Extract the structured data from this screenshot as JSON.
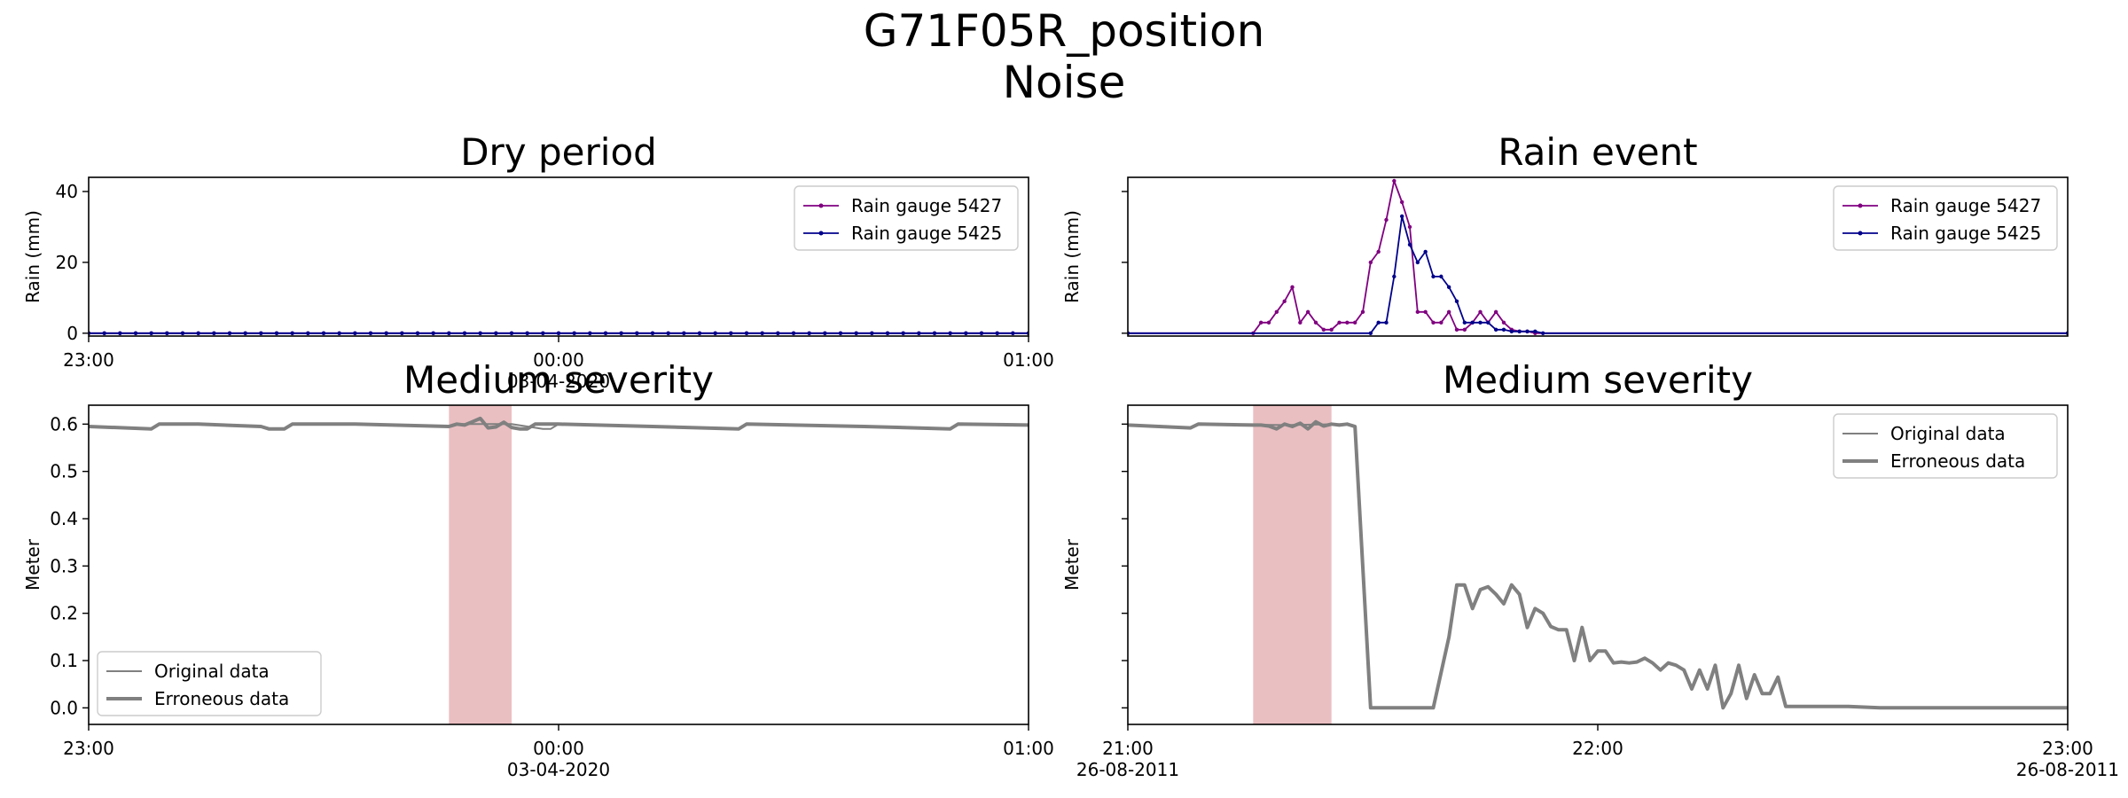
{
  "figure": {
    "title_line1": "G71F05R_position",
    "title_line2": "Noise"
  },
  "colors": {
    "gauge_5427": "#800080",
    "gauge_5425": "#00008b",
    "level_line": "#808080",
    "highlight": "#d98a8f"
  },
  "chart_data": [
    {
      "type": "line",
      "title": "Dry period",
      "ylabel": "Rain (mm)",
      "ylim": [
        -0.8,
        44
      ],
      "yticks": [
        0,
        20,
        40
      ],
      "x_range_min": [
        0,
        120
      ],
      "x_ticks": [
        {
          "x": 0,
          "line1": "23:00",
          "line2": ""
        },
        {
          "x": 60,
          "line1": "00:00",
          "line2": "03-04-2020"
        },
        {
          "x": 120,
          "line1": "01:00",
          "line2": ""
        }
      ],
      "legend_position": "upper right",
      "series": [
        {
          "name": "Rain gauge 5427",
          "color_key": "gauge_5427",
          "step_min": 2,
          "values": "zeros"
        },
        {
          "name": "Rain gauge 5425",
          "color_key": "gauge_5425",
          "step_min": 2,
          "values": "zeros"
        }
      ]
    },
    {
      "type": "line",
      "title": "Rain event",
      "ylabel": "Rain (mm)",
      "ylim": [
        -0.8,
        44
      ],
      "yticks": [],
      "x_range_min": [
        0,
        120
      ],
      "x_ticks": [],
      "legend_position": "upper right",
      "series": [
        {
          "name": "Rain gauge 5427",
          "color_key": "gauge_5427",
          "points": [
            [
              0,
              0
            ],
            [
              16,
              0
            ],
            [
              17,
              3
            ],
            [
              18,
              3
            ],
            [
              19,
              6
            ],
            [
              20,
              9
            ],
            [
              21,
              13
            ],
            [
              22,
              3
            ],
            [
              23,
              6
            ],
            [
              24,
              3
            ],
            [
              25,
              1
            ],
            [
              26,
              1
            ],
            [
              27,
              3
            ],
            [
              28,
              3
            ],
            [
              29,
              3
            ],
            [
              30,
              6
            ],
            [
              31,
              20
            ],
            [
              32,
              23
            ],
            [
              33,
              32
            ],
            [
              34,
              43
            ],
            [
              35,
              37
            ],
            [
              36,
              30
            ],
            [
              37,
              6
            ],
            [
              38,
              6
            ],
            [
              39,
              3
            ],
            [
              40,
              3
            ],
            [
              41,
              6
            ],
            [
              42,
              1
            ],
            [
              43,
              1
            ],
            [
              44,
              3
            ],
            [
              45,
              6
            ],
            [
              46,
              3
            ],
            [
              47,
              6
            ],
            [
              48,
              3
            ],
            [
              49,
              1
            ],
            [
              50,
              0.5
            ],
            [
              51,
              0.5
            ],
            [
              52,
              0
            ],
            [
              120,
              0
            ]
          ]
        },
        {
          "name": "Rain gauge 5425",
          "color_key": "gauge_5425",
          "points": [
            [
              0,
              0
            ],
            [
              31,
              0
            ],
            [
              32,
              3
            ],
            [
              33,
              3
            ],
            [
              34,
              16
            ],
            [
              35,
              33
            ],
            [
              36,
              25
            ],
            [
              37,
              20
            ],
            [
              38,
              23
            ],
            [
              39,
              16
            ],
            [
              40,
              16
            ],
            [
              41,
              13
            ],
            [
              42,
              9
            ],
            [
              43,
              3
            ],
            [
              44,
              3
            ],
            [
              45,
              3
            ],
            [
              46,
              3
            ],
            [
              47,
              1
            ],
            [
              48,
              1
            ],
            [
              49,
              0.5
            ],
            [
              50,
              0.5
            ],
            [
              51,
              0.5
            ],
            [
              52,
              0.5
            ],
            [
              53,
              0
            ],
            [
              120,
              0
            ]
          ]
        }
      ]
    },
    {
      "type": "line",
      "title": "Medium severity",
      "ylabel": "Meter",
      "ylim": [
        -0.035,
        0.64
      ],
      "yticks": [
        0.0,
        0.1,
        0.2,
        0.3,
        0.4,
        0.5,
        0.6
      ],
      "x_range_min": [
        0,
        120
      ],
      "x_ticks": [
        {
          "x": 0,
          "line1": "23:00",
          "line2": ""
        },
        {
          "x": 60,
          "line1": "00:00",
          "line2": "03-04-2020"
        },
        {
          "x": 120,
          "line1": "01:00",
          "line2": ""
        }
      ],
      "highlight_span": [
        46,
        54
      ],
      "legend_position": "lower left",
      "series": [
        {
          "name": "Original data",
          "color_key": "level_line",
          "width": 2,
          "points": [
            [
              0,
              0.595
            ],
            [
              8,
              0.59
            ],
            [
              9,
              0.6
            ],
            [
              14,
              0.6
            ],
            [
              22,
              0.595
            ],
            [
              23,
              0.59
            ],
            [
              25,
              0.59
            ],
            [
              26,
              0.6
            ],
            [
              34,
              0.6
            ],
            [
              46,
              0.595
            ],
            [
              47,
              0.6
            ],
            [
              54,
              0.6
            ],
            [
              58,
              0.59
            ],
            [
              59,
              0.59
            ],
            [
              60,
              0.6
            ],
            [
              72,
              0.595
            ],
            [
              83,
              0.59
            ],
            [
              84,
              0.6
            ],
            [
              99,
              0.595
            ],
            [
              110,
              0.59
            ],
            [
              111,
              0.6
            ],
            [
              120,
              0.598
            ]
          ]
        },
        {
          "name": "Erroneous data",
          "color_key": "level_line",
          "width": 4,
          "points": [
            [
              0,
              0.595
            ],
            [
              8,
              0.59
            ],
            [
              9,
              0.6
            ],
            [
              14,
              0.6
            ],
            [
              22,
              0.595
            ],
            [
              23,
              0.59
            ],
            [
              25,
              0.59
            ],
            [
              26,
              0.6
            ],
            [
              34,
              0.6
            ],
            [
              46,
              0.595
            ],
            [
              47,
              0.6
            ],
            [
              48,
              0.598
            ],
            [
              49,
              0.605
            ],
            [
              50,
              0.612
            ],
            [
              51,
              0.592
            ],
            [
              52,
              0.594
            ],
            [
              53,
              0.604
            ],
            [
              54,
              0.593
            ],
            [
              55,
              0.59
            ],
            [
              56,
              0.59
            ],
            [
              57,
              0.6
            ],
            [
              60,
              0.6
            ],
            [
              72,
              0.595
            ],
            [
              83,
              0.59
            ],
            [
              84,
              0.6
            ],
            [
              99,
              0.595
            ],
            [
              110,
              0.59
            ],
            [
              111,
              0.6
            ],
            [
              120,
              0.598
            ]
          ]
        }
      ]
    },
    {
      "type": "line",
      "title": "Medium severity",
      "ylabel": "Meter",
      "ylim": [
        -0.035,
        0.64
      ],
      "yticks": [],
      "x_range_min": [
        0,
        120
      ],
      "x_ticks": [
        {
          "x": 0,
          "line1": "21:00",
          "line2": "26-08-2011"
        },
        {
          "x": 60,
          "line1": "22:00",
          "line2": ""
        },
        {
          "x": 120,
          "line1": "23:00",
          "line2": "26-08-2011"
        }
      ],
      "highlight_span": [
        16,
        26
      ],
      "legend_position": "upper right",
      "series": [
        {
          "name": "Original data",
          "color_key": "level_line",
          "width": 2,
          "points": [
            [
              0,
              0.598
            ],
            [
              8,
              0.592
            ],
            [
              9,
              0.6
            ],
            [
              20,
              0.598
            ],
            [
              28,
              0.6
            ],
            [
              29,
              0.595
            ],
            [
              31,
              0.0
            ],
            [
              39,
              0.0
            ],
            [
              41,
              0.15
            ],
            [
              42,
              0.26
            ],
            [
              43,
              0.26
            ],
            [
              44,
              0.21
            ],
            [
              45,
              0.25
            ],
            [
              46,
              0.256
            ],
            [
              47,
              0.24
            ],
            [
              48,
              0.22
            ],
            [
              49,
              0.26
            ],
            [
              50,
              0.24
            ],
            [
              51,
              0.17
            ],
            [
              52,
              0.21
            ],
            [
              53,
              0.2
            ],
            [
              54,
              0.172
            ],
            [
              55,
              0.165
            ],
            [
              56,
              0.165
            ],
            [
              57,
              0.1
            ],
            [
              58,
              0.17
            ],
            [
              59,
              0.1
            ],
            [
              60,
              0.12
            ],
            [
              61,
              0.12
            ],
            [
              62,
              0.095
            ],
            [
              63,
              0.097
            ],
            [
              64,
              0.095
            ],
            [
              65,
              0.097
            ],
            [
              66,
              0.105
            ],
            [
              67,
              0.095
            ],
            [
              68,
              0.08
            ],
            [
              69,
              0.095
            ],
            [
              70,
              0.09
            ],
            [
              71,
              0.08
            ],
            [
              72,
              0.04
            ],
            [
              73,
              0.08
            ],
            [
              74,
              0.04
            ],
            [
              75,
              0.09
            ],
            [
              76,
              0.0
            ],
            [
              77,
              0.03
            ],
            [
              78,
              0.09
            ],
            [
              79,
              0.02
            ],
            [
              80,
              0.07
            ],
            [
              81,
              0.03
            ],
            [
              82,
              0.03
            ],
            [
              83,
              0.065
            ],
            [
              84,
              0.003
            ],
            [
              88,
              0.003
            ],
            [
              92,
              0.003
            ],
            [
              96,
              0.0
            ],
            [
              120,
              0.0
            ]
          ]
        },
        {
          "name": "Erroneous data",
          "color_key": "level_line",
          "width": 4,
          "points": [
            [
              0,
              0.598
            ],
            [
              8,
              0.592
            ],
            [
              9,
              0.6
            ],
            [
              16,
              0.598
            ],
            [
              17,
              0.598
            ],
            [
              18,
              0.596
            ],
            [
              19,
              0.59
            ],
            [
              20,
              0.6
            ],
            [
              21,
              0.595
            ],
            [
              22,
              0.602
            ],
            [
              23,
              0.59
            ],
            [
              24,
              0.605
            ],
            [
              25,
              0.596
            ],
            [
              26,
              0.6
            ],
            [
              27,
              0.598
            ],
            [
              28,
              0.6
            ],
            [
              29,
              0.595
            ],
            [
              31,
              0.0
            ],
            [
              39,
              0.0
            ],
            [
              41,
              0.15
            ],
            [
              42,
              0.26
            ],
            [
              43,
              0.26
            ],
            [
              44,
              0.21
            ],
            [
              45,
              0.25
            ],
            [
              46,
              0.256
            ],
            [
              47,
              0.24
            ],
            [
              48,
              0.22
            ],
            [
              49,
              0.26
            ],
            [
              50,
              0.24
            ],
            [
              51,
              0.17
            ],
            [
              52,
              0.21
            ],
            [
              53,
              0.2
            ],
            [
              54,
              0.172
            ],
            [
              55,
              0.165
            ],
            [
              56,
              0.165
            ],
            [
              57,
              0.1
            ],
            [
              58,
              0.17
            ],
            [
              59,
              0.1
            ],
            [
              60,
              0.12
            ],
            [
              61,
              0.12
            ],
            [
              62,
              0.095
            ],
            [
              63,
              0.097
            ],
            [
              64,
              0.095
            ],
            [
              65,
              0.097
            ],
            [
              66,
              0.105
            ],
            [
              67,
              0.095
            ],
            [
              68,
              0.08
            ],
            [
              69,
              0.095
            ],
            [
              70,
              0.09
            ],
            [
              71,
              0.08
            ],
            [
              72,
              0.04
            ],
            [
              73,
              0.08
            ],
            [
              74,
              0.04
            ],
            [
              75,
              0.09
            ],
            [
              76,
              0.0
            ],
            [
              77,
              0.03
            ],
            [
              78,
              0.09
            ],
            [
              79,
              0.02
            ],
            [
              80,
              0.07
            ],
            [
              81,
              0.03
            ],
            [
              82,
              0.03
            ],
            [
              83,
              0.065
            ],
            [
              84,
              0.003
            ],
            [
              88,
              0.003
            ],
            [
              92,
              0.003
            ],
            [
              96,
              0.0
            ],
            [
              120,
              0.0
            ]
          ]
        }
      ]
    }
  ]
}
